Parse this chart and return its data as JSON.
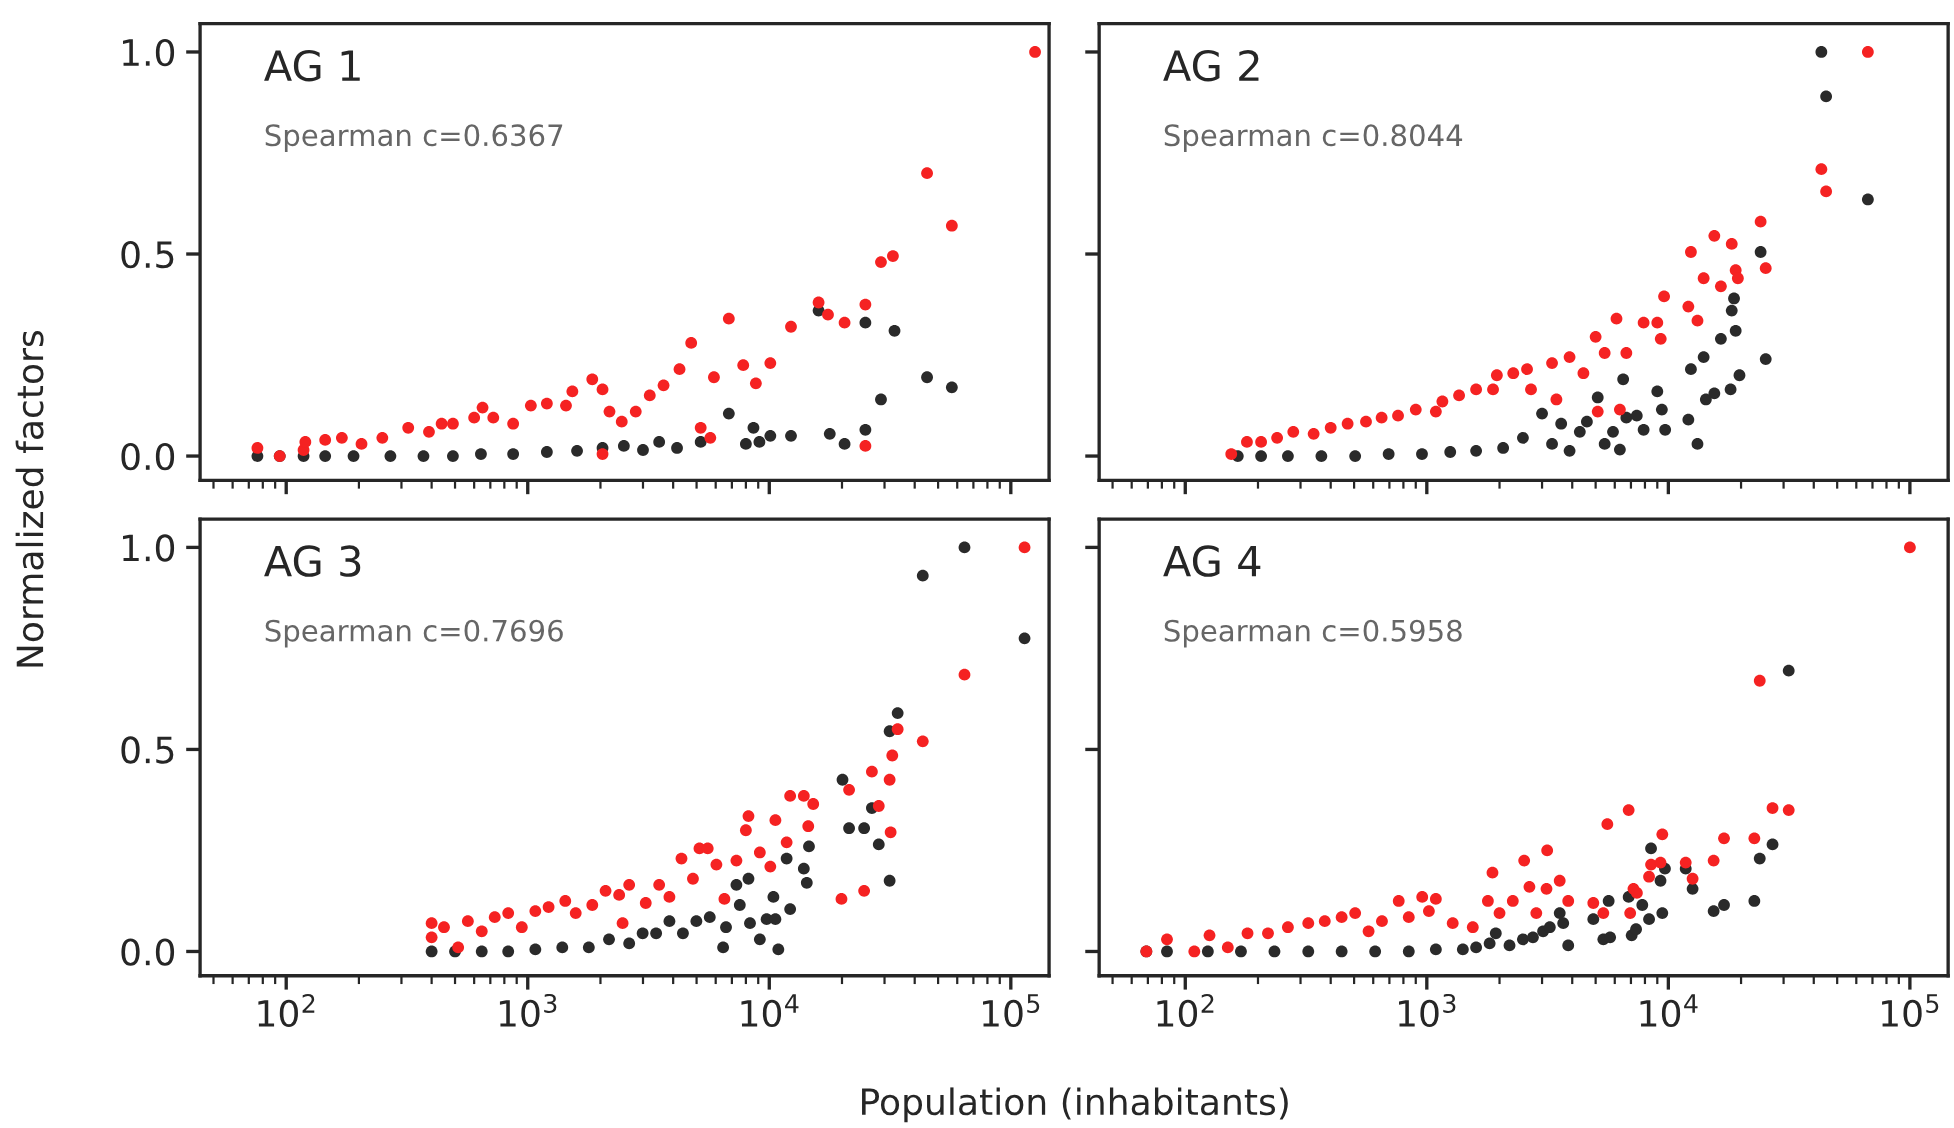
{
  "chart_data": [
    {
      "type": "scatter",
      "title": "AG 1",
      "annotations": [
        "Spearman c=0.6367"
      ],
      "ylabel": "Normalized factors",
      "log": "x",
      "xlim": [
        44,
        144000
      ],
      "ylim": [
        -0.06,
        1.07
      ],
      "xticks": [
        {
          "value": 100,
          "label": null
        },
        {
          "value": 1000,
          "label": null
        },
        {
          "value": 10000,
          "label": null
        },
        {
          "value": 100000,
          "label": null
        }
      ],
      "yticks": [
        {
          "value": 0,
          "label": "0.0"
        },
        {
          "value": 0.5,
          "label": "0.5"
        },
        {
          "value": 1,
          "label": "1.0"
        }
      ],
      "marker": "circle",
      "grid": false,
      "tick_labels": "y",
      "series": [
        {
          "color": "#2a2a2a",
          "x": [
            76,
            94,
            118,
            145,
            190,
            270,
            370,
            490,
            640,
            870,
            1200,
            1600,
            2040,
            2500,
            3000,
            3500,
            4150,
            5200,
            6800,
            8000,
            8600,
            9100,
            10100,
            12300,
            16000,
            17800,
            20500,
            25000,
            25000,
            29000,
            33000,
            45000,
            57000
          ],
          "values": [
            0,
            0,
            0,
            0,
            0,
            0,
            0,
            0,
            0.005,
            0.005,
            0.01,
            0.013,
            0.02,
            0.025,
            0.015,
            0.035,
            0.02,
            0.035,
            0.105,
            0.03,
            0.07,
            0.035,
            0.05,
            0.05,
            0.36,
            0.055,
            0.03,
            0.065,
            0.33,
            0.14,
            0.31,
            0.195,
            0.17
          ]
        },
        {
          "color": "#f52222",
          "x": [
            76,
            94,
            118,
            120,
            145,
            170,
            205,
            250,
            320,
            390,
            440,
            490,
            600,
            650,
            720,
            870,
            1030,
            1200,
            1440,
            1530,
            1850,
            2040,
            2180,
            2450,
            2040,
            2800,
            3200,
            3650,
            4250,
            4750,
            5200,
            5700,
            5900,
            6800,
            7800,
            8800,
            10100,
            12300,
            16000,
            17500,
            20500,
            25000,
            25000,
            29000,
            32500,
            45000,
            57000,
            126000
          ],
          "values": [
            0.02,
            0,
            0.015,
            0.035,
            0.04,
            0.045,
            0.03,
            0.045,
            0.07,
            0.06,
            0.08,
            0.08,
            0.095,
            0.12,
            0.095,
            0.08,
            0.125,
            0.13,
            0.125,
            0.16,
            0.19,
            0.165,
            0.11,
            0.085,
            0.005,
            0.11,
            0.15,
            0.175,
            0.215,
            0.28,
            0.07,
            0.045,
            0.195,
            0.34,
            0.225,
            0.18,
            0.23,
            0.32,
            0.38,
            0.35,
            0.33,
            0.375,
            0.025,
            0.48,
            0.495,
            0.7,
            0.57,
            1.0
          ]
        }
      ]
    },
    {
      "type": "scatter",
      "title": "AG 2",
      "annotations": [
        "Spearman c=0.8044"
      ],
      "log": "x",
      "xlim": [
        44,
        144000
      ],
      "ylim": [
        -0.06,
        1.07
      ],
      "xticks": [
        {
          "value": 100,
          "label": null
        },
        {
          "value": 1000,
          "label": null
        },
        {
          "value": 10000,
          "label": null
        },
        {
          "value": 100000,
          "label": null
        }
      ],
      "yticks": [
        {
          "value": 0,
          "label": null
        },
        {
          "value": 0.5,
          "label": null
        },
        {
          "value": 1,
          "label": null
        }
      ],
      "marker": "circle",
      "grid": false,
      "tick_labels": false,
      "series": [
        {
          "color": "#2a2a2a",
          "x": [
            165,
            206,
            266,
            366,
            505,
            695,
            955,
            1250,
            1600,
            2070,
            2500,
            3000,
            3300,
            3600,
            3900,
            4300,
            4600,
            5100,
            5450,
            5900,
            6300,
            6500,
            6700,
            7400,
            7900,
            9000,
            9400,
            9700,
            12100,
            12400,
            13200,
            14000,
            14300,
            15500,
            16500,
            18100,
            18300,
            18700,
            19000,
            19700,
            24100,
            25300,
            43000,
            45000,
            67000
          ],
          "values": [
            0,
            0,
            0,
            0,
            0,
            0.005,
            0.005,
            0.01,
            0.013,
            0.02,
            0.045,
            0.105,
            0.03,
            0.08,
            0.013,
            0.06,
            0.085,
            0.145,
            0.03,
            0.06,
            0.016,
            0.19,
            0.095,
            0.1,
            0.065,
            0.16,
            0.115,
            0.065,
            0.09,
            0.215,
            0.03,
            0.245,
            0.14,
            0.155,
            0.29,
            0.165,
            0.36,
            0.39,
            0.31,
            0.2,
            0.505,
            0.24,
            1.0,
            0.89,
            0.635
          ]
        },
        {
          "color": "#f52222",
          "x": [
            155,
            180,
            206,
            240,
            280,
            340,
            400,
            470,
            560,
            650,
            760,
            900,
            1090,
            1160,
            1360,
            1600,
            1880,
            1950,
            2280,
            2600,
            2700,
            3300,
            3440,
            3900,
            4450,
            5000,
            5100,
            5450,
            6100,
            6300,
            6700,
            7900,
            9000,
            9300,
            9600,
            12100,
            12400,
            13200,
            14000,
            15500,
            16500,
            18300,
            19000,
            19400,
            24100,
            25300,
            43000,
            45000,
            67000
          ],
          "values": [
            0.005,
            0.035,
            0.035,
            0.045,
            0.06,
            0.055,
            0.07,
            0.08,
            0.085,
            0.095,
            0.1,
            0.115,
            0.11,
            0.135,
            0.15,
            0.165,
            0.165,
            0.2,
            0.205,
            0.215,
            0.165,
            0.23,
            0.14,
            0.245,
            0.205,
            0.295,
            0.11,
            0.255,
            0.34,
            0.115,
            0.255,
            0.33,
            0.33,
            0.29,
            0.395,
            0.37,
            0.505,
            0.335,
            0.44,
            0.545,
            0.42,
            0.525,
            0.46,
            0.44,
            0.58,
            0.465,
            0.71,
            0.655,
            1.0
          ]
        }
      ]
    },
    {
      "type": "scatter",
      "title": "AG 3",
      "annotations": [
        "Spearman c=0.7696"
      ],
      "xlabel": "Population (inhabitants)",
      "log": "x",
      "xlim": [
        44,
        144000
      ],
      "ylim": [
        -0.06,
        1.07
      ],
      "xticks": [
        {
          "value": 100,
          "label": "10$^{2}$"
        },
        {
          "value": 1000,
          "label": "10$^{3}$"
        },
        {
          "value": 10000,
          "label": "10$^{4}$"
        },
        {
          "value": 100000,
          "label": "10$^{5}$"
        }
      ],
      "yticks": [
        {
          "value": 0,
          "label": "0.0"
        },
        {
          "value": 0.5,
          "label": "0.5"
        },
        {
          "value": 1,
          "label": "1.0"
        }
      ],
      "marker": "circle",
      "grid": false,
      "series": [
        {
          "color": "#2a2a2a",
          "x": [
            400,
            500,
            645,
            830,
            1075,
            1390,
            1790,
            2170,
            2630,
            2990,
            3400,
            3860,
            4390,
            4990,
            5670,
            6440,
            6620,
            7310,
            7550,
            8200,
            8320,
            9140,
            9750,
            10400,
            10600,
            10900,
            11800,
            12200,
            13900,
            14600,
            14300,
            20100,
            21400,
            24700,
            26600,
            28400,
            31500,
            31500,
            34000,
            43200,
            64300,
            114000
          ],
          "values": [
            0,
            0,
            0,
            0,
            0.005,
            0.01,
            0.01,
            0.03,
            0.02,
            0.045,
            0.045,
            0.075,
            0.045,
            0.075,
            0.085,
            0.01,
            0.06,
            0.165,
            0.115,
            0.18,
            0.07,
            0.03,
            0.08,
            0.135,
            0.08,
            0.005,
            0.23,
            0.105,
            0.205,
            0.26,
            0.17,
            0.425,
            0.305,
            0.305,
            0.355,
            0.265,
            0.175,
            0.545,
            0.59,
            0.93,
            1.0,
            0.775
          ]
        },
        {
          "color": "#f52222",
          "x": [
            400,
            400,
            450,
            515,
            565,
            645,
            730,
            830,
            945,
            1075,
            1220,
            1430,
            1580,
            1850,
            2100,
            2390,
            2630,
            2470,
            3080,
            3500,
            3860,
            4330,
            4830,
            5140,
            5560,
            6040,
            6520,
            7310,
            8200,
            8000,
            9140,
            10100,
            10600,
            11800,
            12200,
            13900,
            15200,
            14500,
            19900,
            21400,
            24700,
            26600,
            28400,
            31500,
            32300,
            31800,
            34000,
            43200,
            64300,
            114000
          ],
          "values": [
            0.07,
            0.035,
            0.06,
            0.01,
            0.075,
            0.05,
            0.085,
            0.095,
            0.06,
            0.1,
            0.11,
            0.125,
            0.095,
            0.115,
            0.15,
            0.14,
            0.165,
            0.07,
            0.12,
            0.165,
            0.135,
            0.23,
            0.18,
            0.255,
            0.255,
            0.215,
            0.13,
            0.225,
            0.335,
            0.3,
            0.245,
            0.21,
            0.325,
            0.27,
            0.385,
            0.385,
            0.365,
            0.31,
            0.13,
            0.4,
            0.15,
            0.445,
            0.36,
            0.425,
            0.485,
            0.295,
            0.55,
            0.52,
            0.685,
            1.0
          ]
        }
      ]
    },
    {
      "type": "scatter",
      "title": "AG 4",
      "annotations": [
        "Spearman c=0.5958"
      ],
      "log": "x",
      "xlim": [
        44,
        144000
      ],
      "ylim": [
        -0.06,
        1.07
      ],
      "xticks": [
        {
          "value": 100,
          "label": "10$^{2}$"
        },
        {
          "value": 1000,
          "label": "10$^{3}$"
        },
        {
          "value": 10000,
          "label": "10$^{4}$"
        },
        {
          "value": 100000,
          "label": "10$^{5}$"
        }
      ],
      "yticks": [
        {
          "value": 0,
          "label": null
        },
        {
          "value": 0.5,
          "label": null
        },
        {
          "value": 1,
          "label": null
        }
      ],
      "marker": "circle",
      "grid": false,
      "tick_labels": "x",
      "series": [
        {
          "color": "#2a2a2a",
          "x": [
            69,
            84,
            124,
            170,
            234,
            323,
            444,
            611,
            842,
            1090,
            1410,
            1600,
            1820,
            1930,
            2200,
            2500,
            2750,
            3030,
            3230,
            3670,
            3550,
            3850,
            4890,
            5380,
            5740,
            5660,
            6850,
            7050,
            7350,
            7800,
            8320,
            8480,
            9280,
            9440,
            9680,
            11800,
            12600,
            15400,
            17000,
            22700,
            23900,
            27000,
            31500
          ],
          "values": [
            0,
            0,
            0,
            0,
            0,
            0,
            0,
            0,
            0,
            0.005,
            0.005,
            0.01,
            0.02,
            0.045,
            0.015,
            0.03,
            0.035,
            0.05,
            0.06,
            0.07,
            0.095,
            0.015,
            0.08,
            0.03,
            0.035,
            0.125,
            0.135,
            0.04,
            0.055,
            0.115,
            0.08,
            0.255,
            0.175,
            0.095,
            0.205,
            0.205,
            0.155,
            0.1,
            0.115,
            0.125,
            0.23,
            0.265,
            0.695
          ]
        },
        {
          "color": "#f52222",
          "x": [
            69,
            84,
            109,
            126,
            150,
            181,
            220,
            266,
            323,
            378,
            444,
            505,
            574,
            652,
            765,
            842,
            957,
            1020,
            1090,
            1280,
            1550,
            1790,
            1870,
            2000,
            2270,
            2530,
            2660,
            2840,
            3130,
            3150,
            3550,
            3850,
            4890,
            5380,
            5590,
            6850,
            6950,
            7170,
            7410,
            8320,
            8480,
            9440,
            9280,
            11800,
            12600,
            15400,
            17000,
            22700,
            23900,
            27000,
            31500,
            100000
          ],
          "values": [
            0,
            0.03,
            0,
            0.04,
            0.01,
            0.045,
            0.045,
            0.06,
            0.07,
            0.075,
            0.085,
            0.095,
            0.05,
            0.075,
            0.125,
            0.085,
            0.135,
            0.1,
            0.13,
            0.07,
            0.06,
            0.125,
            0.195,
            0.095,
            0.125,
            0.225,
            0.16,
            0.095,
            0.155,
            0.25,
            0.175,
            0.125,
            0.12,
            0.095,
            0.315,
            0.35,
            0.095,
            0.155,
            0.145,
            0.185,
            0.215,
            0.29,
            0.22,
            0.22,
            0.18,
            0.225,
            0.28,
            0.28,
            0.67,
            0.355,
            0.35,
            1.0
          ]
        }
      ]
    }
  ]
}
